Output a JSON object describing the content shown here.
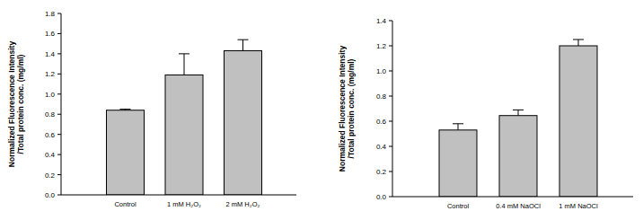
{
  "chart_data": [
    {
      "type": "bar",
      "y_label": [
        "Normalized Fluorescence Intensity",
        "/Total protein conc. (mg/ml)"
      ],
      "categories": [
        "Control",
        "1 mM H₂O₂",
        "2 mM H₂O₂"
      ],
      "values": [
        0.84,
        1.19,
        1.43
      ],
      "errors": [
        0.01,
        0.21,
        0.11
      ],
      "color": "#c0c0c0",
      "ylim": [
        0,
        1.8
      ],
      "yticks": [
        {
          "value": 0,
          "label": "0.0"
        },
        0.2,
        0.4,
        0.6,
        0.8,
        {
          "value": 1,
          "label": "1.0"
        },
        1.2,
        1.4,
        1.6,
        1.8
      ],
      "grid": false
    },
    {
      "type": "bar",
      "y_label": [
        "Normalized Fluorescence Intensity",
        "/Total protein conc. (mg/ml)"
      ],
      "categories": [
        "Control",
        "0.4 mM NaOCl",
        "1 mM NaOCl"
      ],
      "values": [
        0.53,
        0.645,
        1.2
      ],
      "errors": [
        0.05,
        0.045,
        0.05
      ],
      "color": "#c0c0c0",
      "ylim": [
        0,
        1.4
      ],
      "yticks": [
        {
          "value": 0,
          "label": "0.0"
        },
        0.2,
        0.4,
        0.6,
        0.8,
        {
          "value": 1,
          "label": "1.0"
        },
        1.2,
        1.4
      ],
      "grid": false
    }
  ]
}
